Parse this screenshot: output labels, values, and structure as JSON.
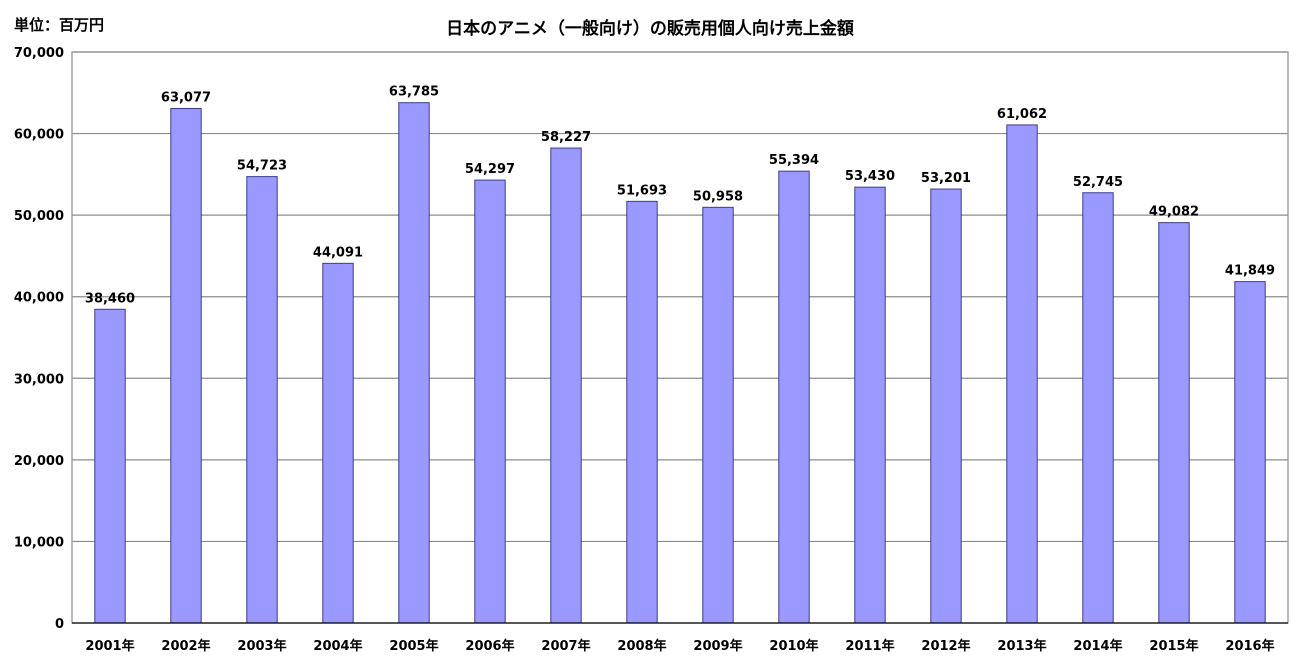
{
  "unit_label": "単位：百万円",
  "chart_data": {
    "type": "bar",
    "title": "日本のアニメ（一般向け）の販売用個人向け売上金額",
    "xlabel": "",
    "ylabel": "",
    "categories": [
      "2001年",
      "2002年",
      "2003年",
      "2004年",
      "2005年",
      "2006年",
      "2007年",
      "2008年",
      "2009年",
      "2010年",
      "2011年",
      "2012年",
      "2013年",
      "2014年",
      "2015年",
      "2016年"
    ],
    "values": [
      38460,
      63077,
      54723,
      44091,
      63785,
      54297,
      58227,
      51693,
      50958,
      55394,
      53430,
      53201,
      61062,
      52745,
      49082,
      41849
    ],
    "value_labels": [
      "38,460",
      "63,077",
      "54,723",
      "44,091",
      "63,785",
      "54,297",
      "58,227",
      "51,693",
      "50,958",
      "55,394",
      "53,430",
      "53,201",
      "61,062",
      "52,745",
      "49,082",
      "41,849"
    ],
    "ylim": [
      0,
      70000
    ],
    "y_ticks": [
      0,
      10000,
      20000,
      30000,
      40000,
      50000,
      60000,
      70000
    ],
    "y_tick_labels": [
      "0",
      "10,000",
      "20,000",
      "30,000",
      "40,000",
      "50,000",
      "60,000",
      "70,000"
    ],
    "grid": true,
    "legend": false,
    "bar_color": "#9999ff",
    "bar_edge_color": "#3c3c8c"
  }
}
